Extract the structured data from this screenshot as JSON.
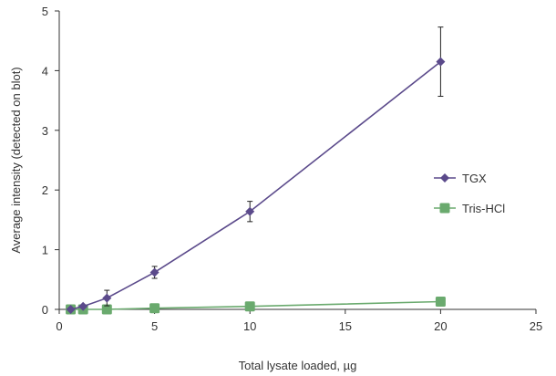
{
  "chart_data": {
    "type": "line",
    "xlabel": "Total lysate loaded, µg",
    "ylabel": "Average intensity (detected on blot)",
    "xlim": [
      0,
      25
    ],
    "ylim": [
      0,
      5
    ],
    "x_ticks": [
      0,
      5,
      10,
      15,
      20,
      25
    ],
    "y_ticks": [
      0,
      1,
      2,
      3,
      4,
      5
    ],
    "x_tick_labels": [
      "0",
      "5",
      "10",
      "15",
      "20",
      "25"
    ],
    "y_tick_labels": [
      "0",
      "1",
      "2",
      "3",
      "4",
      "5"
    ],
    "grid": false,
    "legend_position": "right",
    "series": [
      {
        "name": "TGX",
        "marker": "diamond",
        "color": "#5b4a8b",
        "x": [
          0.6,
          1.25,
          2.5,
          5,
          10,
          20
        ],
        "y": [
          0.0,
          0.05,
          0.19,
          0.62,
          1.64,
          4.15
        ],
        "error": [
          0.0,
          0.02,
          0.13,
          0.1,
          0.17,
          0.58
        ]
      },
      {
        "name": "Tris-HCl",
        "marker": "square",
        "color": "#6aaa6e",
        "x": [
          0.6,
          1.25,
          2.5,
          5,
          10,
          20
        ],
        "y": [
          0.0,
          0.0,
          0.0,
          0.02,
          0.05,
          0.13
        ],
        "error": [
          0,
          0,
          0,
          0,
          0,
          0
        ]
      }
    ]
  }
}
